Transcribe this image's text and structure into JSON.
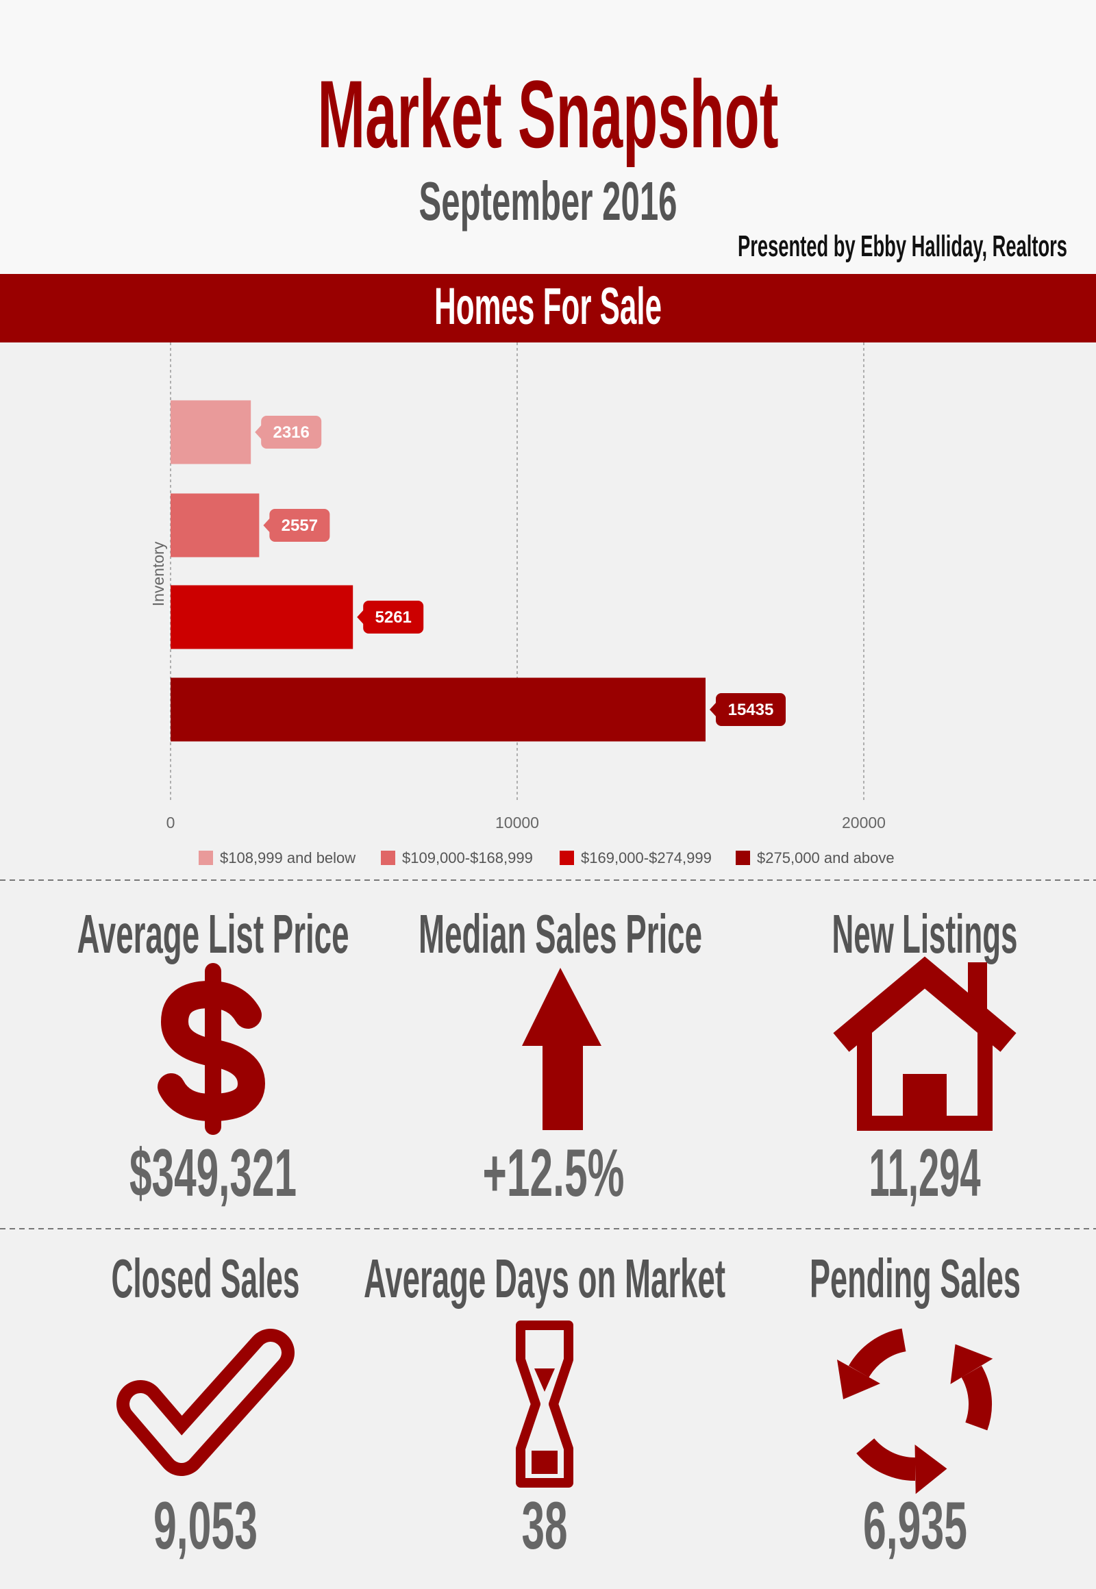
{
  "header": {
    "title": "Market Snapshot",
    "subtitle": "September 2016",
    "presenter": "Presented by Ebby Halliday, Realtors"
  },
  "section_title": "Homes For Sale",
  "chart_data": {
    "type": "bar",
    "orientation": "horizontal",
    "y_label": "Inventory",
    "series": [
      {
        "name": "$108,999 and below",
        "color": "#e99a9a",
        "values": [
          2316
        ]
      },
      {
        "name": "$109,000-$168,999",
        "color": "#e06666",
        "values": [
          2557
        ]
      },
      {
        "name": "$169,000-$274,999",
        "color": "#cc0000",
        "values": [
          5261
        ]
      },
      {
        "name": "$275,000 and above",
        "color": "#990000",
        "values": [
          15435
        ]
      }
    ],
    "xlim": [
      0,
      26700
    ],
    "xticks": [
      0,
      10000,
      20000
    ],
    "grid": true,
    "legend": "bottom"
  },
  "stats": [
    {
      "label": "Average List Price",
      "value": "$349,321"
    },
    {
      "label": "Median Sales Price",
      "value": "+12.5%"
    },
    {
      "label": "New Listings",
      "value": "11,294"
    },
    {
      "label": "Closed Sales",
      "value": "9,053"
    },
    {
      "label": "Average Days on Market",
      "value": "38"
    },
    {
      "label": "Pending Sales",
      "value": "6,935"
    }
  ]
}
